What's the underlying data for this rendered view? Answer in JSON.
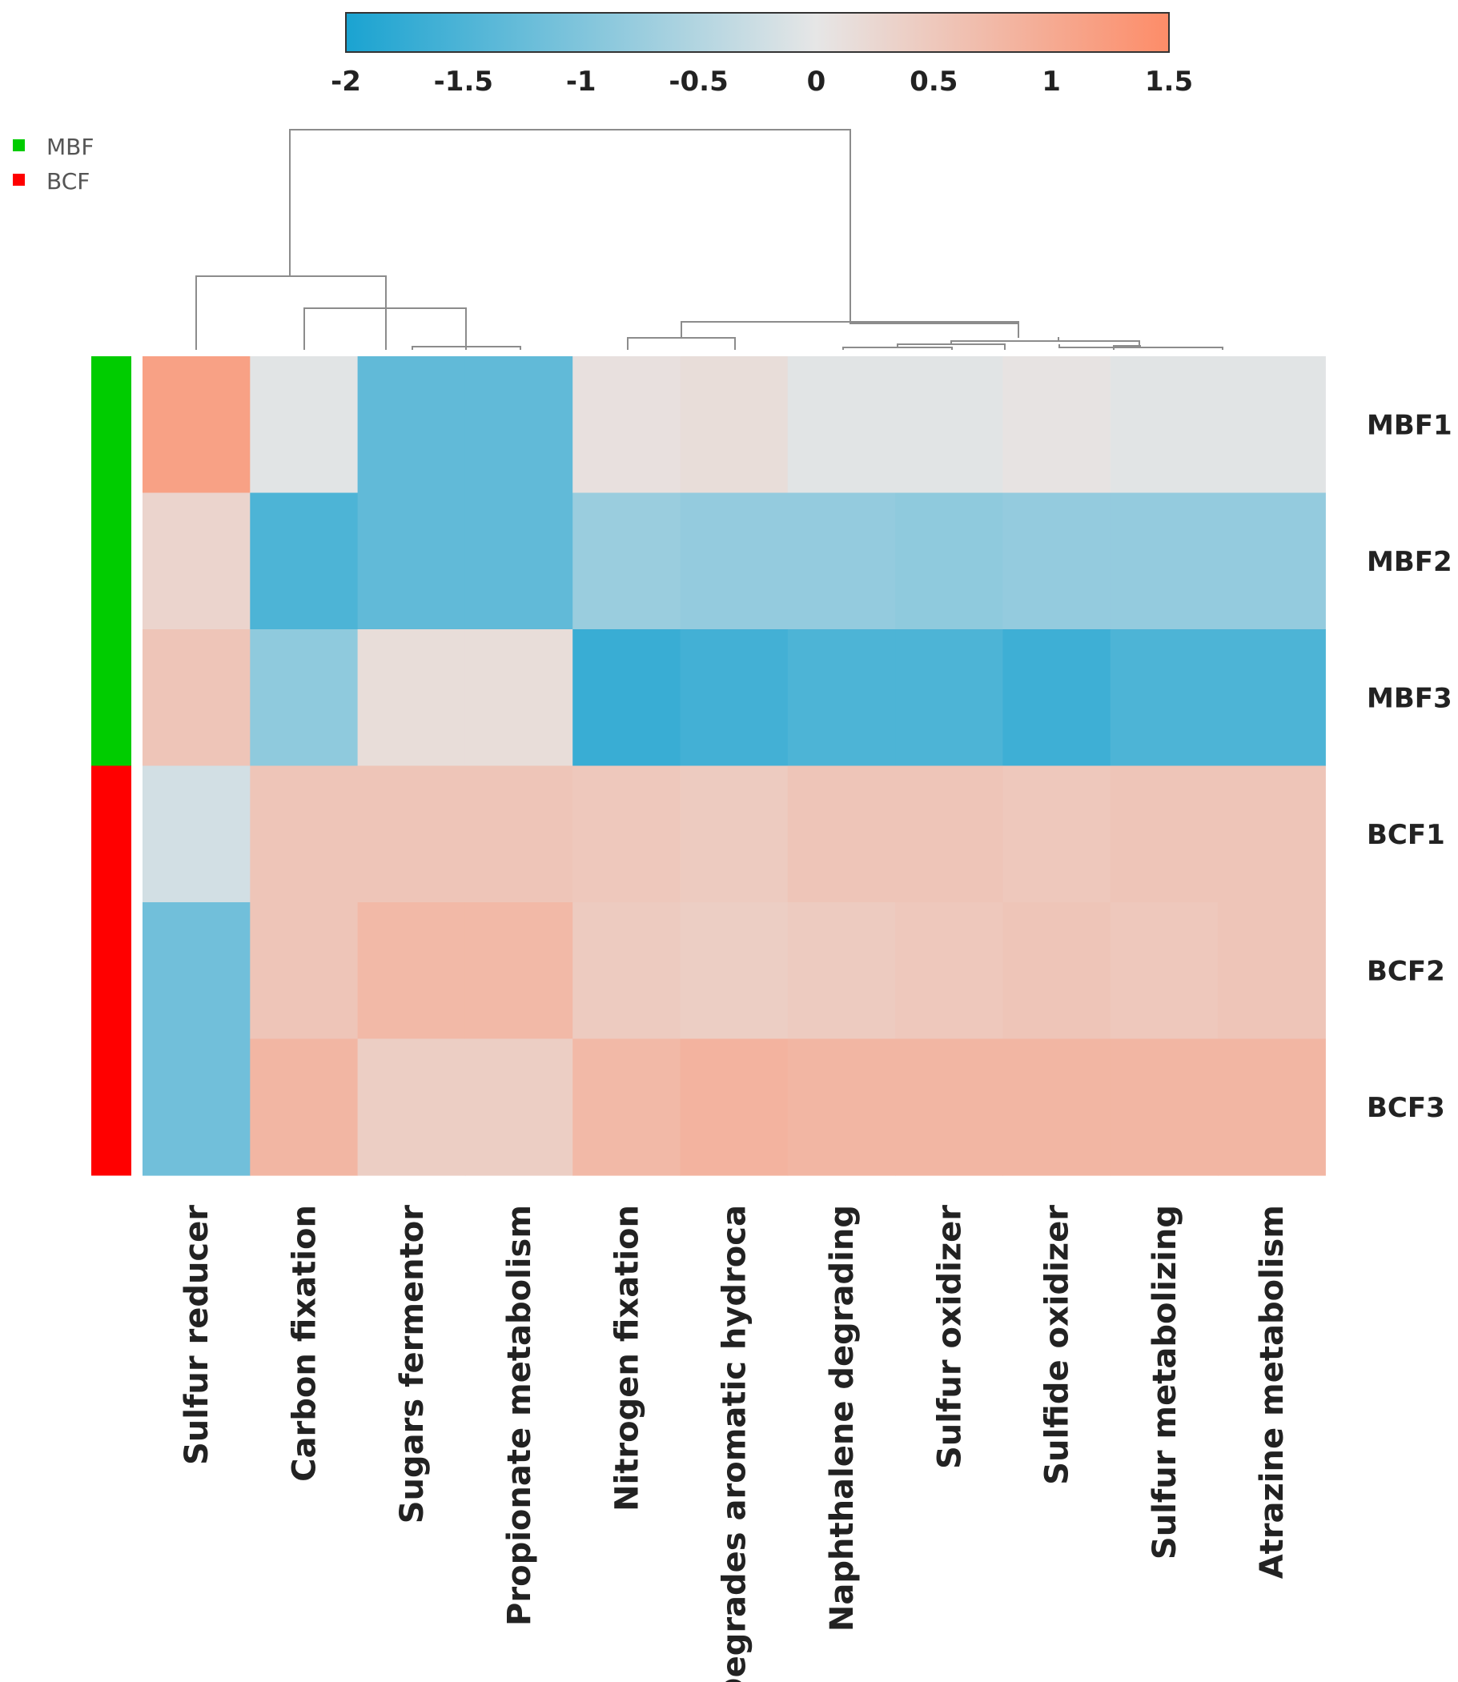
{
  "chart_data": {
    "type": "heatmap",
    "title": "",
    "color_scale": {
      "min": -2,
      "max": 1.5,
      "ticks": [
        "-2",
        "-1.5",
        "-1",
        "-0.5",
        "0",
        "0.5",
        "1",
        "1.5"
      ],
      "tick_values": [
        -2,
        -1.5,
        -1,
        -0.5,
        0,
        0.5,
        1,
        1.5
      ],
      "low_color": "#1aa3d1",
      "mid_color": "#e6e6e6",
      "high_color": "#fd8c68"
    },
    "legend": [
      {
        "label": "MBF",
        "color": "#00cc00"
      },
      {
        "label": "BCF",
        "color": "#ff0000"
      }
    ],
    "rows": [
      "MBF1",
      "MBF2",
      "MBF3",
      "BCF1",
      "BCF2",
      "BCF3"
    ],
    "row_groups": [
      "MBF",
      "MBF",
      "MBF",
      "BCF",
      "BCF",
      "BCF"
    ],
    "columns": [
      "Sulfur reducer",
      "Carbon fixation",
      "Sugars fermentor",
      "Propionate metabolism",
      "Nitrogen fixation",
      "Degrades aromatic hydroca",
      "Naphthalene degrading",
      "Sulfur oxidizer",
      "Sulfide oxidizer",
      "Sulfur metabolizing",
      "Atrazine metabolism"
    ],
    "values": [
      [
        1.15,
        -0.05,
        -1.3,
        -1.3,
        0.1,
        0.15,
        -0.05,
        -0.05,
        0.05,
        -0.05,
        -0.05
      ],
      [
        0.3,
        -1.5,
        -1.3,
        -1.3,
        -0.75,
        -0.8,
        -0.8,
        -0.85,
        -0.8,
        -0.8,
        -0.8
      ],
      [
        0.55,
        -0.85,
        0.15,
        0.15,
        -1.7,
        -1.6,
        -1.5,
        -1.5,
        -1.65,
        -1.5,
        -1.5
      ],
      [
        -0.2,
        0.55,
        0.55,
        0.55,
        0.5,
        0.45,
        0.55,
        0.55,
        0.5,
        0.55,
        0.55
      ],
      [
        -1.15,
        0.55,
        0.75,
        0.75,
        0.45,
        0.4,
        0.45,
        0.5,
        0.55,
        0.5,
        0.55
      ],
      [
        -1.15,
        0.8,
        0.4,
        0.4,
        0.75,
        0.85,
        0.8,
        0.8,
        0.8,
        0.8,
        0.8
      ]
    ]
  }
}
